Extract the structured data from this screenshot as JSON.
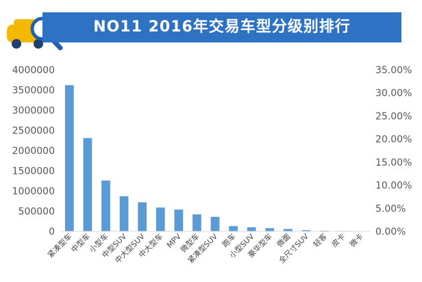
{
  "banner": {
    "title": "NO11 2016年交易车型分级别排行",
    "bar_color": "#2e72c4",
    "icon": "car-magnifier-icon"
  },
  "chart_data": {
    "type": "bar",
    "title": "",
    "xlabel": "",
    "ylabel": "",
    "categories": [
      "紧凑型车",
      "中型车",
      "小型车",
      "中型SUV",
      "中大型SUV",
      "中大型车",
      "MPV",
      "微型车",
      "紧凑型SUV",
      "跑车",
      "小型SUV",
      "豪华型车",
      "微面",
      "全尺寸SUV",
      "轻客",
      "皮卡",
      "微卡"
    ],
    "series": [
      {
        "values": [
          3620000,
          2310000,
          1260000,
          870000,
          720000,
          590000,
          540000,
          420000,
          360000,
          130000,
          100000,
          80000,
          60000,
          30000,
          15000,
          10000,
          8000
        ]
      }
    ],
    "ylim": [
      0,
      4000000
    ],
    "y_ticks": [
      "0",
      "500000",
      "1000000",
      "1500000",
      "2000000",
      "2500000",
      "3000000",
      "3500000",
      "4000000"
    ],
    "y2lim": [
      0,
      35
    ],
    "y2_ticks": [
      "0.00%",
      "5.00%",
      "10.00%",
      "15.00%",
      "20.00%",
      "25.00%",
      "30.00%",
      "35.00%"
    ],
    "bar_color": "#5b9bd5",
    "grid": false,
    "legend": "none"
  }
}
